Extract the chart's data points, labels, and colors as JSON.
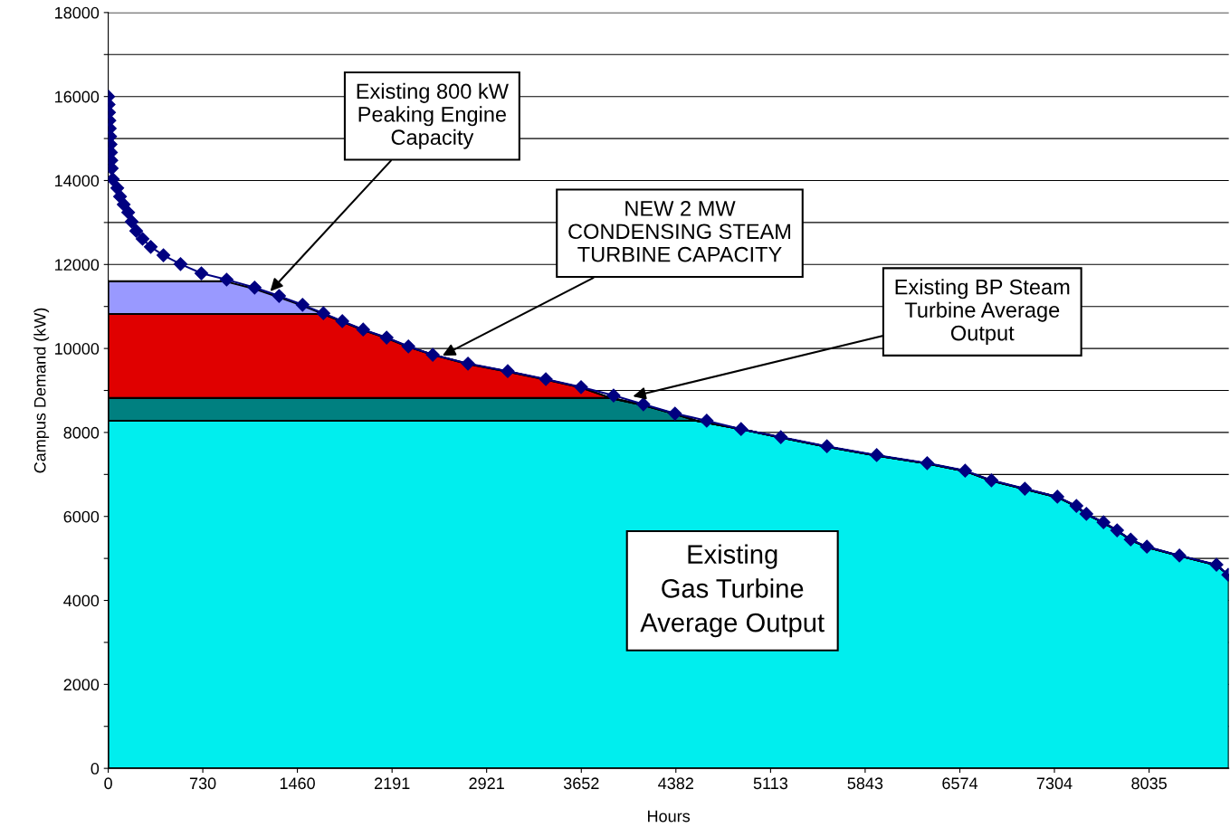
{
  "chart_data": {
    "type": "area",
    "stacked": true,
    "xlabel": "Hours",
    "ylabel": "Campus Demand (kW)",
    "x": [
      0,
      900,
      1130,
      1319,
      1500,
      1661,
      1807,
      1968,
      2149,
      2317,
      2505,
      2777,
      3084,
      3378,
      3650,
      3880,
      4131,
      4375,
      4540,
      4885,
      5192,
      5548,
      5932,
      6322,
      6615,
      6818,
      7076,
      7327,
      7474,
      7551,
      7683,
      7788,
      7893,
      8018,
      8269,
      8555,
      8650
    ],
    "series": [
      {
        "color": "#00eeee",
        "values": [
          8280,
          8280,
          8280,
          8280,
          8280,
          8280,
          8280,
          8280,
          8280,
          8280,
          8280,
          8280,
          8280,
          8280,
          8280,
          8280,
          8280,
          8280,
          8280,
          8080,
          7880,
          7660,
          7450,
          7260,
          7080,
          6850,
          6650,
          6460,
          6240,
          6050,
          5850,
          5660,
          5440,
          5270,
          5060,
          4840,
          4600
        ]
      },
      {
        "color": "#008080",
        "values": [
          540,
          540,
          540,
          540,
          540,
          540,
          540,
          540,
          540,
          540,
          540,
          540,
          540,
          540,
          540,
          540,
          370,
          160,
          0,
          0,
          0,
          0,
          0,
          0,
          0,
          0,
          0,
          0,
          0,
          0,
          0,
          0,
          0,
          0,
          0,
          0,
          0
        ]
      },
      {
        "color": "#e00000",
        "values": [
          2000,
          2000,
          2000,
          2000,
          2000,
          2000,
          1820,
          1620,
          1430,
          1220,
          1030,
          810,
          630,
          440,
          250,
          0,
          0,
          0,
          0,
          0,
          0,
          0,
          0,
          0,
          0,
          0,
          0,
          0,
          0,
          0,
          0,
          0,
          0,
          0,
          0,
          0,
          0
        ]
      },
      {
        "color": "#9999ff",
        "values": [
          780,
          780,
          600,
          400,
          200,
          0,
          0,
          0,
          0,
          0,
          0,
          0,
          0,
          0,
          0,
          0,
          0,
          0,
          0,
          0,
          0,
          0,
          0,
          0,
          0,
          0,
          0,
          0,
          0,
          0,
          0,
          0,
          0,
          0,
          0,
          0,
          0
        ]
      },
      {
        "type": "line",
        "color": "#000080",
        "marker": "diamond",
        "x": [
          0,
          3,
          6,
          9,
          12,
          15,
          18,
          21,
          24,
          27,
          30,
          35,
          70,
          91,
          119,
          154,
          181,
          216,
          265,
          328,
          426,
          558,
          719,
          914,
          1130,
          1319,
          1500,
          1661,
          1807,
          1968,
          2149,
          2317,
          2505,
          2777,
          3084,
          3378,
          3650,
          3901,
          4131,
          4375,
          4620,
          4885,
          5192,
          5548,
          5932,
          6322,
          6615,
          6818,
          7076,
          7327,
          7474,
          7551,
          7683,
          7788,
          7893,
          8018,
          8269,
          8555,
          8646
        ],
        "values": [
          16000,
          15810,
          15620,
          15430,
          15240,
          15050,
          14860,
          14670,
          14480,
          14290,
          null,
          14030,
          13820,
          13620,
          13430,
          13240,
          13020,
          12800,
          12610,
          12420,
          12220,
          12010,
          11790,
          11640,
          11450,
          11250,
          11040,
          10840,
          10650,
          10450,
          10260,
          10050,
          9850,
          9640,
          9460,
          9270,
          9080,
          8880,
          8670,
          8450,
          8280,
          8080,
          7890,
          7670,
          7460,
          7270,
          7090,
          6860,
          6660,
          6470,
          6250,
          6060,
          5860,
          5670,
          5450,
          5280,
          5070,
          4850,
          4610
        ]
      }
    ],
    "xlim": [
      0,
      8650
    ],
    "xticks": [
      0,
      730,
      1460,
      2191,
      2921,
      3652,
      4382,
      5113,
      5843,
      6574,
      7304,
      8035
    ],
    "ylim": [
      0,
      18000
    ],
    "yticks": [
      0,
      {
        "value": 1000,
        "label": null
      },
      2000,
      {
        "value": 3000,
        "label": null
      },
      4000,
      {
        "value": 5000,
        "label": null
      },
      6000,
      {
        "value": 7000,
        "label": null
      },
      8000,
      {
        "value": 9000,
        "label": null
      },
      10000,
      {
        "value": 11000,
        "label": null
      },
      12000,
      {
        "value": 13000,
        "label": null
      },
      14000,
      {
        "value": 15000,
        "label": null
      },
      16000,
      {
        "value": 17000,
        "label": null
      },
      18000
    ],
    "grid": "y",
    "annotations": [
      {
        "text": "Existing 800 kW\nPeaking Engine\nCapacity",
        "x": 1250,
        "y": 11360
      },
      {
        "text": "NEW 2 MW\nCONDENSING STEAM\nTURBINE CAPACITY",
        "x": 2580,
        "y": 9830
      },
      {
        "text": "Existing BP Steam\nTurbine Average\nOutput",
        "x": 4050,
        "y": 8860
      },
      "Existing\nGas Turbine\nAverage Output"
    ]
  }
}
